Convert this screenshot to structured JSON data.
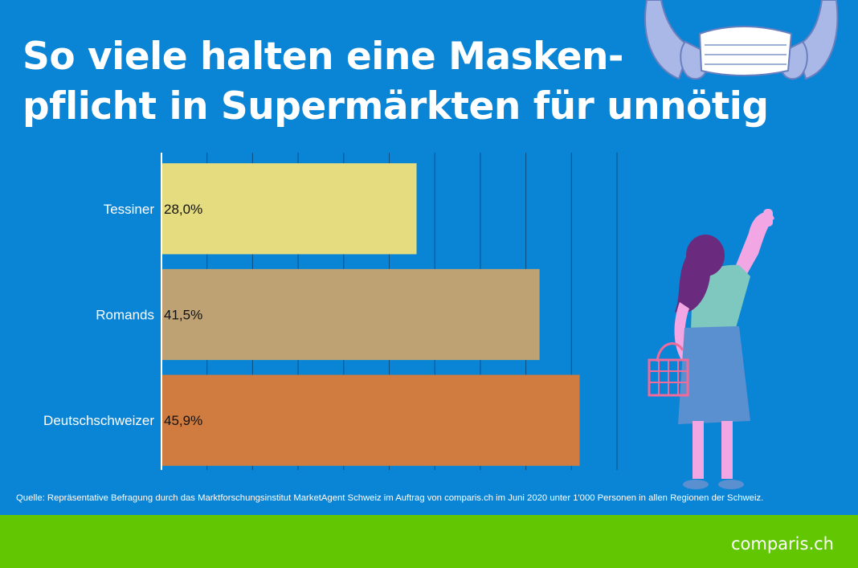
{
  "title": {
    "line1": "So viele halten eine Masken-",
    "line2": "pflicht in Supermärkten für unnötig"
  },
  "chart_data": {
    "type": "bar",
    "orientation": "horizontal",
    "categories": [
      "Tessiner",
      "Romands",
      "Deutschschweizer"
    ],
    "values": [
      28.0,
      41.5,
      45.9
    ],
    "value_labels": [
      "28,0%",
      "41,5%",
      "45,9%"
    ],
    "xlim": [
      0,
      50
    ],
    "grid": true,
    "title": "So viele halten eine Masken-pflicht in Supermärkten für unnötig",
    "xlabel": "",
    "ylabel": "",
    "colors": [
      "#e4dc7e",
      "#bfa274",
      "#d07c40"
    ]
  },
  "source": "Quelle: Repräsentative Befragung durch das Marktforschungsinstitut MarketAgent Schweiz im Auftrag von comparis.ch im Juni 2020 unter 1'000 Personen in allen Regionen der Schweiz.",
  "logo": {
    "text": "comparis.ch"
  },
  "colors": {
    "background": "#0a84d4",
    "footer": "#62c702",
    "text": "#ffffff"
  },
  "illustrations": [
    "hands-holding-mask",
    "woman-with-shopping-basket"
  ]
}
